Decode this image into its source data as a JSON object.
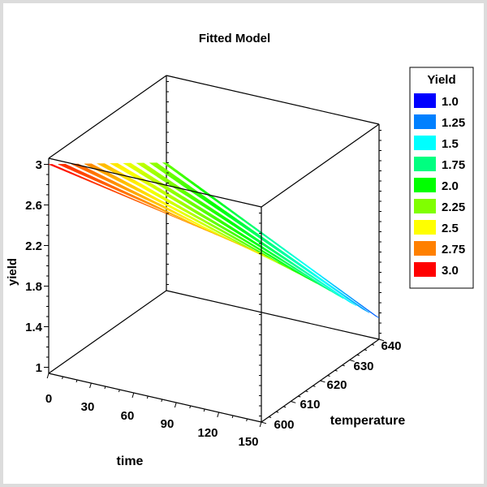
{
  "chart_data": {
    "type": "surface",
    "title": "Fitted Model",
    "xlabel": "time",
    "ylabel": "temperature",
    "zlabel": "yield",
    "x_ticks": [
      "0",
      "30",
      "60",
      "90",
      "120",
      "150"
    ],
    "y_ticks": [
      "600",
      "610",
      "620",
      "630",
      "640"
    ],
    "z_ticks": [
      "1",
      "1.4",
      "1.8",
      "2.2",
      "2.6",
      "3"
    ],
    "xlim": [
      0,
      150
    ],
    "ylim": [
      600,
      640
    ],
    "zlim": [
      0.94,
      3.06
    ],
    "grid": false,
    "time": [
      0,
      30,
      60,
      90,
      120,
      150
    ],
    "temperature": [
      600,
      610,
      620,
      630,
      640
    ],
    "yield": [
      [
        3.0,
        2.92,
        2.84,
        2.76,
        2.68,
        2.6
      ],
      [
        2.8,
        2.69,
        2.58,
        2.46,
        2.35,
        2.24
      ],
      [
        2.6,
        2.46,
        2.31,
        2.17,
        2.02,
        1.88
      ],
      [
        2.4,
        2.22,
        2.05,
        1.87,
        1.69,
        1.51
      ],
      [
        2.2,
        1.99,
        1.78,
        1.57,
        1.36,
        1.15
      ]
    ],
    "legend": {
      "title": "Yield",
      "position": "right",
      "items": [
        {
          "label": "1.0",
          "value": 1.0,
          "color": "#0000ff"
        },
        {
          "label": "1.25",
          "value": 1.25,
          "color": "#0080ff"
        },
        {
          "label": "1.5",
          "value": 1.5,
          "color": "#00ffff"
        },
        {
          "label": "1.75",
          "value": 1.75,
          "color": "#00ff80"
        },
        {
          "label": "2.0",
          "value": 2.0,
          "color": "#00ff00"
        },
        {
          "label": "2.25",
          "value": 2.25,
          "color": "#80ff00"
        },
        {
          "label": "2.5",
          "value": 2.5,
          "color": "#ffff00"
        },
        {
          "label": "2.75",
          "value": 2.75,
          "color": "#ff8000"
        },
        {
          "label": "3.0",
          "value": 3.0,
          "color": "#ff0000"
        }
      ]
    }
  }
}
